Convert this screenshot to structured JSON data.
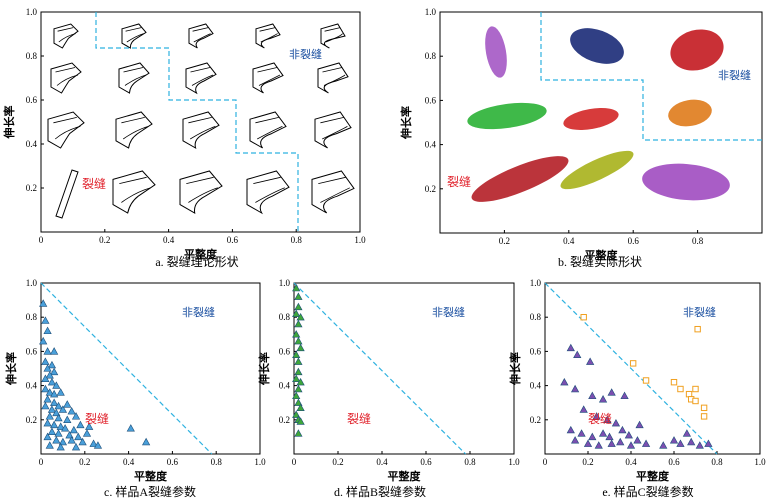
{
  "panels": {
    "a": {
      "caption": "a. 裂缝理论形状",
      "xlabel": "平整度",
      "ylabel": "伸长率",
      "region_fracture": "裂缝",
      "region_nonfracture": "非裂缝",
      "xticks": [
        "0",
        "0.2",
        "0.4",
        "0.6",
        "0.8",
        "1.0"
      ],
      "yticks": [
        "0.2",
        "0.4",
        "0.6",
        "0.8",
        "1.0"
      ]
    },
    "b": {
      "caption": "b. 裂缝实际形状",
      "xlabel": "平整度",
      "ylabel": "伸长率",
      "region_fracture": "裂缝",
      "region_nonfracture": "非裂缝",
      "xticks": [
        "0.2",
        "0.4",
        "0.6",
        "0.8"
      ],
      "yticks": [
        "0.2",
        "0.4",
        "0.6",
        "0.8",
        "1.0"
      ]
    }
  },
  "chart_data": [
    {
      "type": "scatter",
      "panel": "c",
      "caption": "c. 样品A裂缝参数",
      "xlabel": "平整度",
      "ylabel": "伸长率",
      "region_fracture": "裂缝",
      "region_nonfracture": "非裂缝",
      "xticks": [
        "0",
        "0.2",
        "0.4",
        "0.6",
        "0.8",
        "1.0"
      ],
      "yticks": [
        "0.2",
        "0.4",
        "0.6",
        "0.8",
        "1.0"
      ],
      "xlim": [
        0,
        1
      ],
      "ylim": [
        0,
        1
      ],
      "boundary": [
        [
          0,
          1
        ],
        [
          0.78,
          0
        ]
      ],
      "marker": "triangle",
      "color": "#4a9fd9",
      "points": [
        [
          0.01,
          0.88
        ],
        [
          0.02,
          0.78
        ],
        [
          0.03,
          0.72
        ],
        [
          0.01,
          0.66
        ],
        [
          0.03,
          0.6
        ],
        [
          0.06,
          0.6
        ],
        [
          0.02,
          0.54
        ],
        [
          0.05,
          0.52
        ],
        [
          0.03,
          0.5
        ],
        [
          0.06,
          0.48
        ],
        [
          0.04,
          0.46
        ],
        [
          0.02,
          0.44
        ],
        [
          0.05,
          0.42
        ],
        [
          0.07,
          0.4
        ],
        [
          0.02,
          0.38
        ],
        [
          0.04,
          0.36
        ],
        [
          0.06,
          0.35
        ],
        [
          0.09,
          0.36
        ],
        [
          0.03,
          0.32
        ],
        [
          0.06,
          0.3
        ],
        [
          0.08,
          0.28
        ],
        [
          0.02,
          0.28
        ],
        [
          0.05,
          0.26
        ],
        [
          0.07,
          0.24
        ],
        [
          0.1,
          0.26
        ],
        [
          0.12,
          0.29
        ],
        [
          0.14,
          0.25
        ],
        [
          0.04,
          0.22
        ],
        [
          0.08,
          0.21
        ],
        [
          0.12,
          0.2
        ],
        [
          0.16,
          0.22
        ],
        [
          0.18,
          0.17
        ],
        [
          0.03,
          0.18
        ],
        [
          0.06,
          0.17
        ],
        [
          0.09,
          0.16
        ],
        [
          0.11,
          0.15
        ],
        [
          0.15,
          0.14
        ],
        [
          0.05,
          0.13
        ],
        [
          0.08,
          0.12
        ],
        [
          0.13,
          0.11
        ],
        [
          0.17,
          0.1
        ],
        [
          0.21,
          0.12
        ],
        [
          0.03,
          0.1
        ],
        [
          0.07,
          0.08
        ],
        [
          0.1,
          0.07
        ],
        [
          0.14,
          0.08
        ],
        [
          0.19,
          0.07
        ],
        [
          0.24,
          0.06
        ],
        [
          0.22,
          0.16
        ],
        [
          0.26,
          0.05
        ],
        [
          0.04,
          0.05
        ],
        [
          0.09,
          0.04
        ],
        [
          0.16,
          0.04
        ],
        [
          0.41,
          0.15
        ],
        [
          0.48,
          0.07
        ]
      ]
    },
    {
      "type": "scatter",
      "panel": "d",
      "caption": "d. 样品B裂缝参数",
      "xlabel": "平整度",
      "ylabel": "伸长率",
      "region_fracture": "裂缝",
      "region_nonfracture": "非裂缝",
      "xticks": [
        "0",
        "0.2",
        "0.4",
        "0.6",
        "0.8",
        "1.0"
      ],
      "yticks": [
        "0.2",
        "0.4",
        "0.6",
        "0.8",
        "1.0"
      ],
      "xlim": [
        0,
        1
      ],
      "ylim": [
        0,
        1
      ],
      "boundary": [
        [
          0,
          1
        ],
        [
          0.78,
          0
        ]
      ],
      "marker": "triangle",
      "color": "#3fa63a",
      "points": [
        [
          0.01,
          0.97
        ],
        [
          0.02,
          0.92
        ],
        [
          0.02,
          0.86
        ],
        [
          0.01,
          0.82
        ],
        [
          0.03,
          0.8
        ],
        [
          0.02,
          0.76
        ],
        [
          0.01,
          0.7
        ],
        [
          0.02,
          0.66
        ],
        [
          0.03,
          0.62
        ],
        [
          0.01,
          0.58
        ],
        [
          0.02,
          0.54
        ],
        [
          0.02,
          0.48
        ],
        [
          0.01,
          0.44
        ],
        [
          0.03,
          0.42
        ],
        [
          0.02,
          0.38
        ],
        [
          0.01,
          0.34
        ],
        [
          0.02,
          0.3
        ],
        [
          0.03,
          0.27
        ],
        [
          0.01,
          0.23
        ],
        [
          0.02,
          0.2
        ],
        [
          0.03,
          0.19
        ],
        [
          0.02,
          0.12
        ]
      ]
    },
    {
      "type": "scatter",
      "panel": "e",
      "caption": "e. 样品C裂缝参数",
      "xlabel": "平整度",
      "ylabel": "伸长率",
      "region_fracture": "裂缝",
      "region_nonfracture": "非裂缝",
      "xticks": [
        "0",
        "0.2",
        "0.4",
        "0.6",
        "0.8",
        "1.0"
      ],
      "yticks": [
        "0.2",
        "0.4",
        "0.6",
        "0.8",
        "1.0"
      ],
      "xlim": [
        0,
        1
      ],
      "ylim": [
        0,
        1
      ],
      "boundary": [
        [
          0,
          1
        ],
        [
          0.8,
          0
        ]
      ],
      "series": [
        {
          "marker": "triangle",
          "color": "#7b4fb0",
          "points": [
            [
              0.12,
              0.62
            ],
            [
              0.15,
              0.58
            ],
            [
              0.21,
              0.54
            ],
            [
              0.09,
              0.42
            ],
            [
              0.14,
              0.38
            ],
            [
              0.22,
              0.34
            ],
            [
              0.27,
              0.32
            ],
            [
              0.31,
              0.36
            ],
            [
              0.37,
              0.34
            ],
            [
              0.18,
              0.26
            ],
            [
              0.24,
              0.22
            ],
            [
              0.29,
              0.2
            ],
            [
              0.33,
              0.18
            ],
            [
              0.12,
              0.14
            ],
            [
              0.17,
              0.12
            ],
            [
              0.22,
              0.1
            ],
            [
              0.27,
              0.12
            ],
            [
              0.3,
              0.1
            ],
            [
              0.36,
              0.14
            ],
            [
              0.39,
              0.11
            ],
            [
              0.43,
              0.08
            ],
            [
              0.14,
              0.08
            ],
            [
              0.2,
              0.06
            ],
            [
              0.25,
              0.05
            ],
            [
              0.31,
              0.06
            ],
            [
              0.35,
              0.07
            ],
            [
              0.4,
              0.05
            ],
            [
              0.47,
              0.06
            ],
            [
              0.55,
              0.05
            ],
            [
              0.6,
              0.08
            ],
            [
              0.63,
              0.06
            ],
            [
              0.68,
              0.07
            ],
            [
              0.72,
              0.05
            ],
            [
              0.76,
              0.06
            ],
            [
              0.66,
              0.12
            ],
            [
              0.44,
              0.17
            ]
          ]
        },
        {
          "marker": "square",
          "color": "#f0a020",
          "points": [
            [
              0.18,
              0.8
            ],
            [
              0.41,
              0.53
            ],
            [
              0.47,
              0.43
            ],
            [
              0.6,
              0.42
            ],
            [
              0.63,
              0.38
            ],
            [
              0.67,
              0.35
            ],
            [
              0.68,
              0.32
            ],
            [
              0.7,
              0.31
            ],
            [
              0.74,
              0.27
            ],
            [
              0.71,
              0.73
            ],
            [
              0.74,
              0.22
            ],
            [
              0.7,
              0.38
            ]
          ]
        }
      ]
    }
  ]
}
